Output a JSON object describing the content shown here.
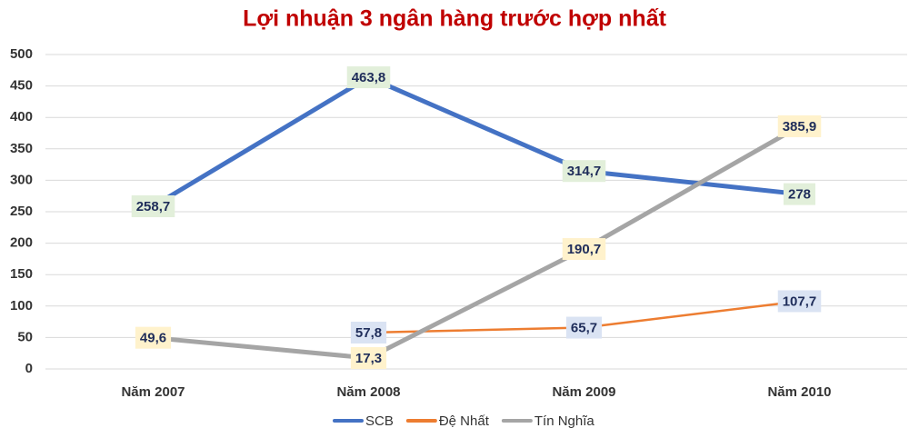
{
  "chart_data": {
    "type": "line",
    "title": "Lợi nhuận 3 ngân hàng trước hợp nhất",
    "categories": [
      "Năm 2007",
      "Năm 2008",
      "Năm 2009",
      "Năm 2010"
    ],
    "series": [
      {
        "name": "SCB",
        "color": "#4472c4",
        "label_fill": "#e2efda",
        "values": [
          258.7,
          463.8,
          314.7,
          278
        ],
        "value_labels": [
          "258,7",
          "463,8",
          "314,7",
          "278"
        ]
      },
      {
        "name": "Đệ Nhất",
        "color": "#ed7d31",
        "label_fill": "#dae3f3",
        "values": [
          null,
          57.8,
          65.7,
          107.7
        ],
        "value_labels": [
          null,
          "57,8",
          "65,7",
          "107,7"
        ]
      },
      {
        "name": "Tín Nghĩa",
        "color": "#a5a5a5",
        "label_fill": "#fff2cc",
        "values": [
          49.6,
          17.3,
          190.7,
          385.9
        ],
        "value_labels": [
          "49,6",
          "17,3",
          "190,7",
          "385,9"
        ]
      }
    ],
    "ylim": [
      0,
      500
    ],
    "yticks": [
      0,
      50,
      100,
      150,
      200,
      250,
      300,
      350,
      400,
      450,
      500
    ],
    "grid": true,
    "legend": "bottom"
  }
}
